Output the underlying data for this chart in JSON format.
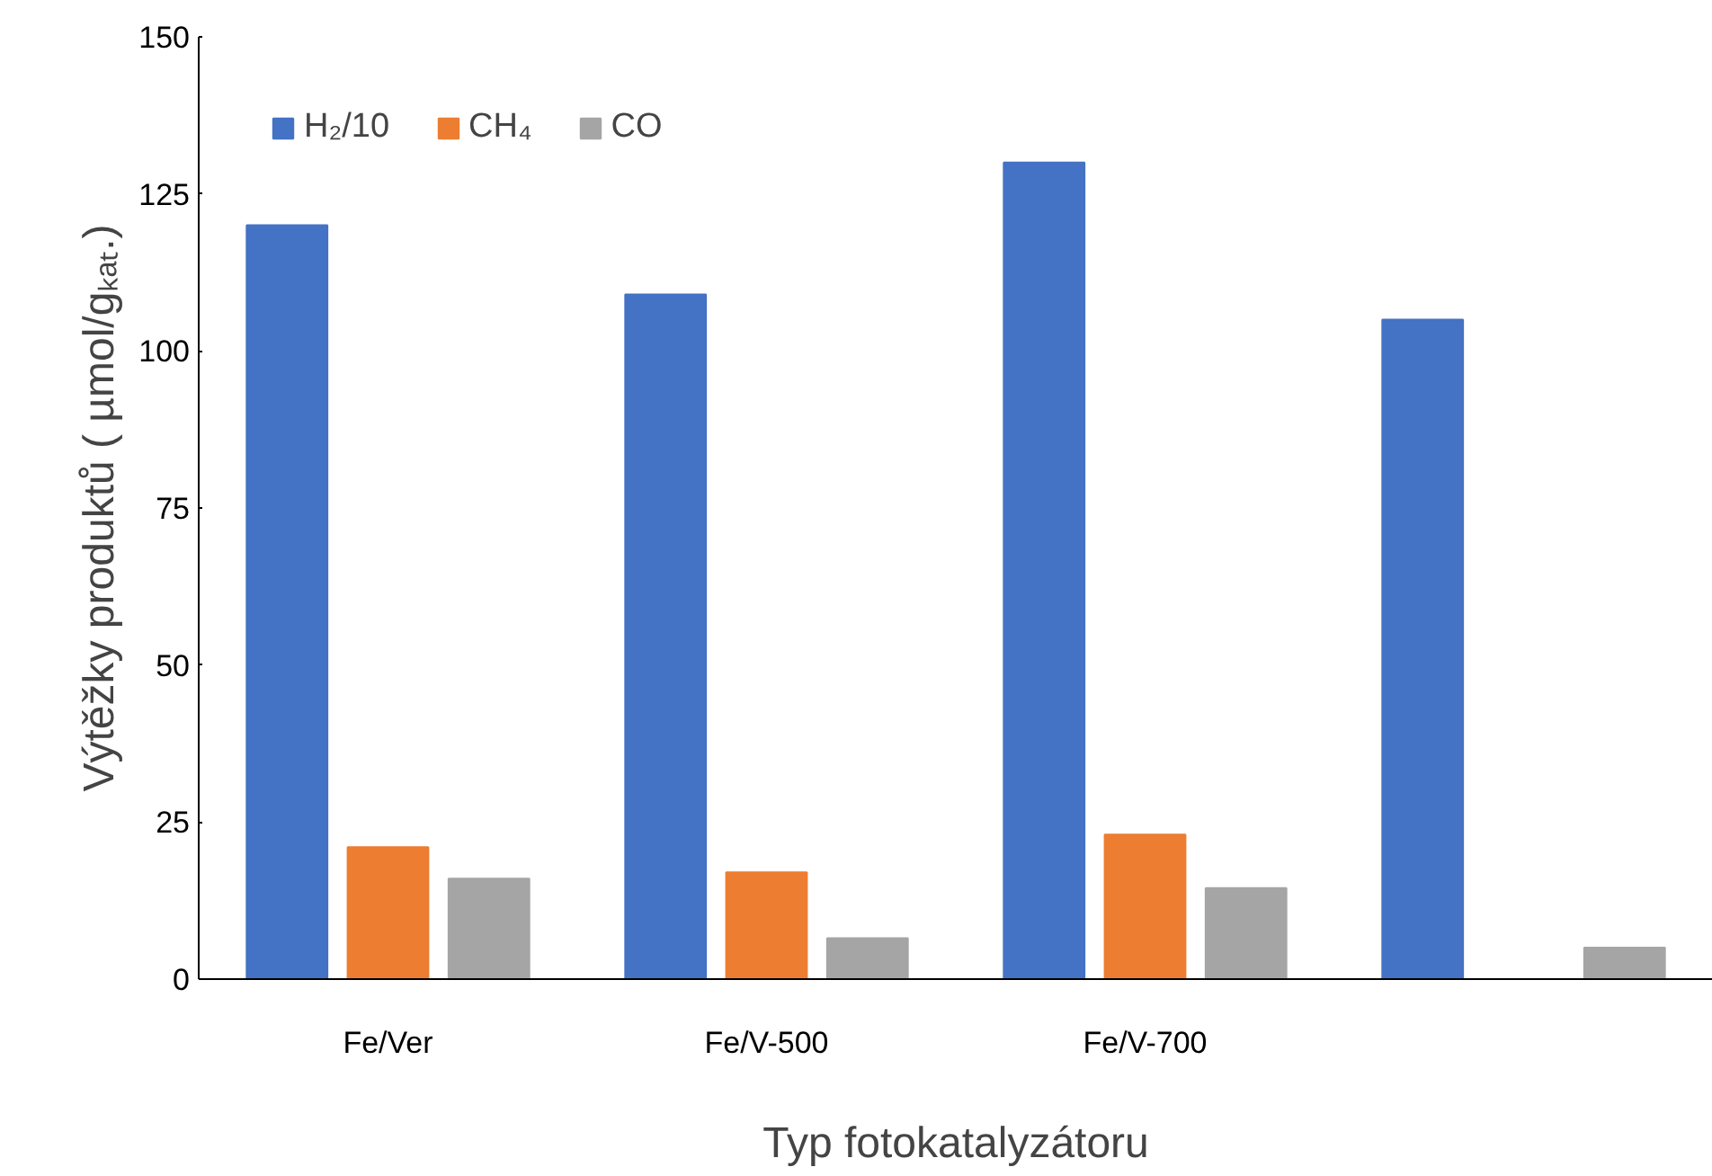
{
  "chart_data": {
    "type": "bar",
    "xlabel": "Typ fotokatalyzátoru",
    "ylabel": "Výtěžky produktů ( µmol/gₖₐₜ.)",
    "categories": [
      "Fe/Ver",
      "Fe/V-500",
      "Fe/V-700",
      null
    ],
    "series": [
      {
        "name": "H₂/10",
        "color": "#4472c4",
        "values": [
          120,
          109,
          130,
          105
        ]
      },
      {
        "name": "CH₄",
        "color": "#ed7d31",
        "values": [
          21,
          17,
          23,
          null
        ]
      },
      {
        "name": "CO",
        "color": "#a5a5a5",
        "values": [
          16,
          6.5,
          14.5,
          5
        ]
      }
    ],
    "ylim": [
      0,
      150
    ],
    "yticks": [
      0,
      25,
      50,
      75,
      100,
      125,
      150
    ],
    "grid": false,
    "legend": "top left"
  }
}
